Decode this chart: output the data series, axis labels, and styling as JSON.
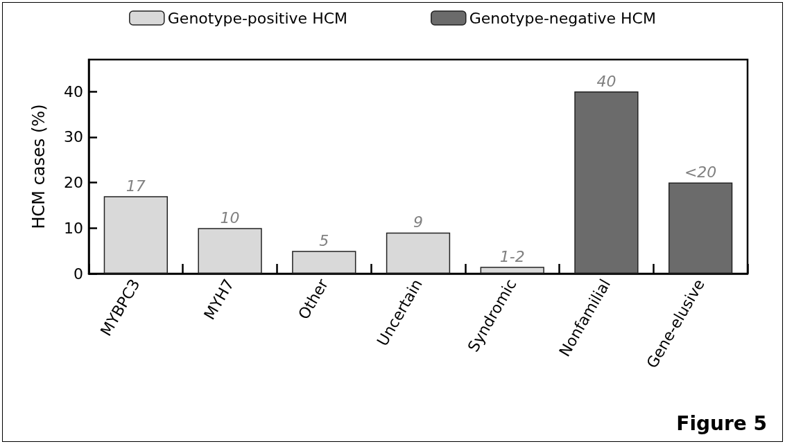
{
  "chart_data": {
    "type": "bar",
    "ylabel": "HCM cases (%)",
    "stacked": true,
    "categories": [
      "MYBPC3",
      "MYH7",
      "Other",
      "Uncertain",
      "Syndromic",
      "Nonfamilial",
      "Gene-elusive"
    ],
    "series": [
      {
        "name": "Genotype-positive HCM",
        "color": "#d9d9d9",
        "values": [
          17,
          10,
          5,
          9,
          1.5,
          null,
          null
        ],
        "value_labels": [
          "17",
          "10",
          "5",
          "9",
          "1-2",
          null,
          null
        ]
      },
      {
        "name": "Genotype-negative HCM",
        "color": "#6b6b6b",
        "values": [
          null,
          null,
          null,
          null,
          null,
          40,
          20
        ],
        "value_labels": [
          null,
          null,
          null,
          null,
          null,
          "40",
          "<20"
        ]
      }
    ],
    "ylim": [
      0,
      47
    ],
    "yticks": [
      0,
      10,
      20,
      30,
      40
    ],
    "grid": false,
    "legend": "top",
    "annotations": [
      "Figure 5"
    ]
  }
}
